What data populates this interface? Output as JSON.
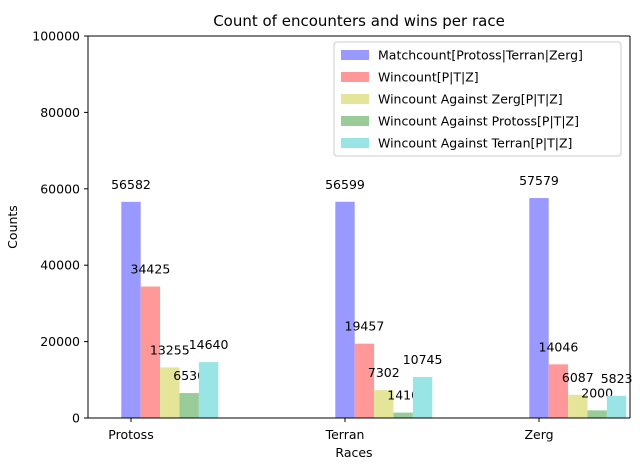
{
  "chart_data": {
    "type": "bar",
    "title": "Count of encounters and wins per race",
    "xlabel": "Races",
    "ylabel": "Counts",
    "ylim": [
      0,
      100000
    ],
    "yticks": [
      0,
      20000,
      40000,
      60000,
      80000,
      100000
    ],
    "categories": [
      "Protoss",
      "Terran",
      "Zerg"
    ],
    "legend_position": "top-right",
    "grid": false,
    "series": [
      {
        "name": "Matchcount[Protoss|Terran|Zerg]",
        "color": "#9999ff",
        "values": [
          56582,
          56599,
          57579
        ]
      },
      {
        "name": "Wincount[P|T|Z]",
        "color": "#ff9999",
        "values": [
          34425,
          19457,
          14046
        ]
      },
      {
        "name": "Wincount Against Zerg[P|T|Z]",
        "color": "#e5e599",
        "values": [
          13255,
          7302,
          6087
        ]
      },
      {
        "name": "Wincount Against Protoss[P|T|Z]",
        "color": "#99cc99",
        "values": [
          6530,
          1410,
          2000
        ]
      },
      {
        "name": "Wincount Against Terran[P|T|Z]",
        "color": "#99e5e5",
        "values": [
          14640,
          10745,
          5823
        ]
      }
    ]
  }
}
